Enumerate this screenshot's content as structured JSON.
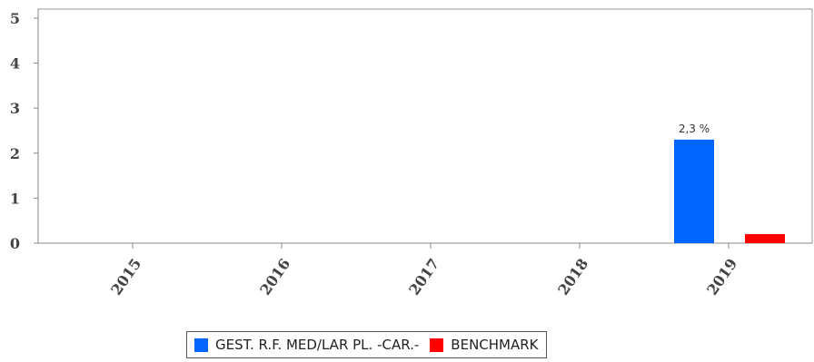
{
  "chart_data": {
    "type": "bar",
    "categories": [
      "2015",
      "2016",
      "2017",
      "2018",
      "2019"
    ],
    "series": [
      {
        "name": "GEST. R.F. MED/LAR PL. -CAR.-",
        "color": "#0066ff",
        "values": [
          null,
          null,
          null,
          null,
          2.3
        ],
        "data_labels": [
          "",
          "",
          "",
          "",
          "2,3 %"
        ]
      },
      {
        "name": "BENCHMARK",
        "color": "#ff0000",
        "values": [
          null,
          null,
          null,
          null,
          0.2
        ],
        "data_labels": [
          "",
          "",
          "",
          "",
          ""
        ]
      }
    ],
    "y_ticks": [
      "0",
      "1",
      "2",
      "3",
      "4",
      "5"
    ],
    "ylim": [
      0,
      5.2
    ],
    "grid": false,
    "legend_position": "bottom"
  }
}
